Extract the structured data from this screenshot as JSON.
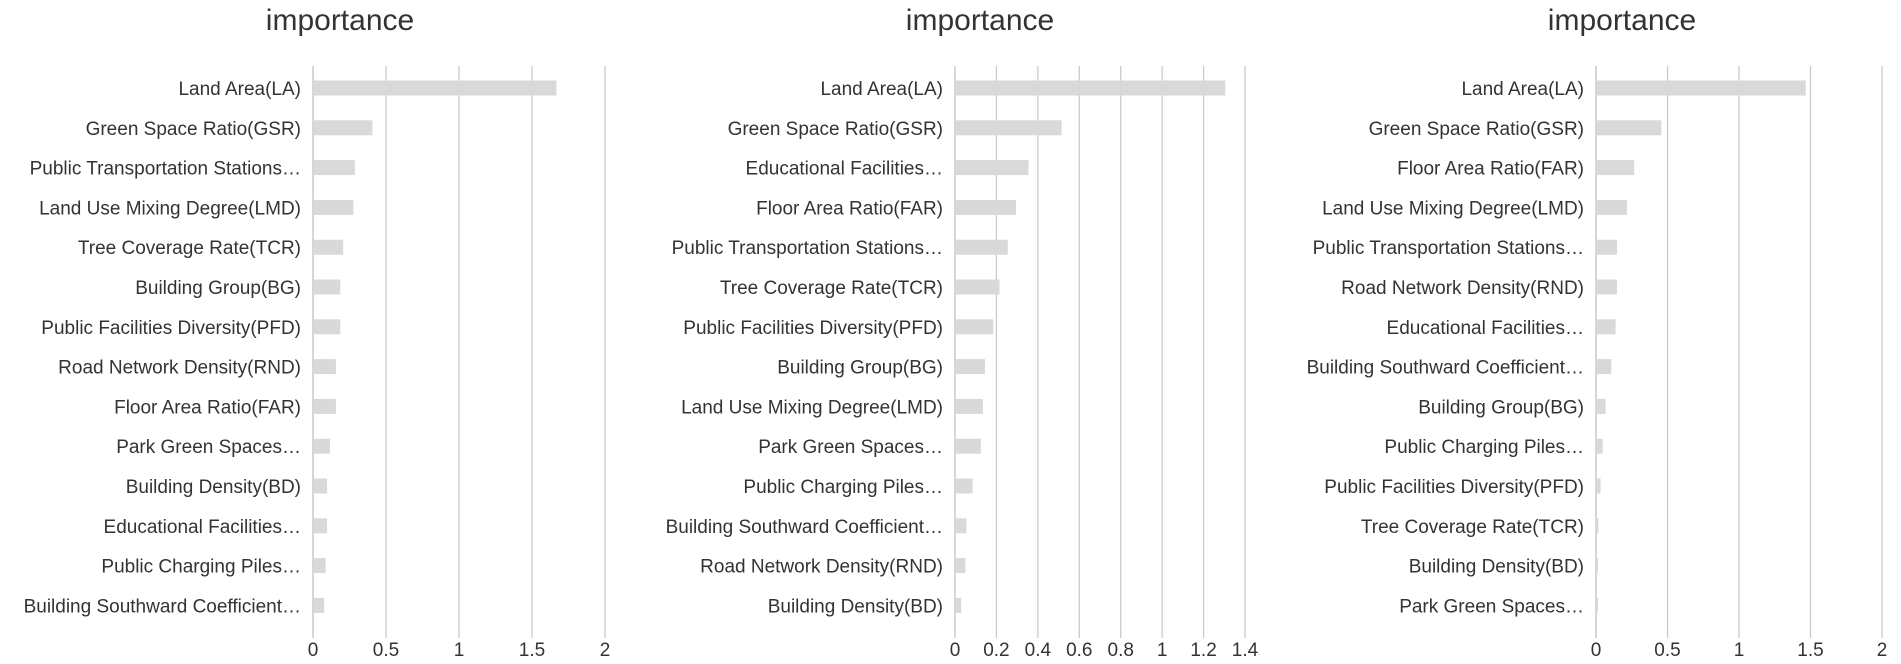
{
  "bar_color": "#d9d9d9",
  "grid_color": "#c8c8c8",
  "text_color": "#333333",
  "chart_data": [
    {
      "type": "bar",
      "orientation": "horizontal",
      "title": "importance",
      "grid": true,
      "xlim": [
        0,
        2
      ],
      "xticks": [
        "0",
        "0.5",
        "1",
        "1.5",
        "2"
      ],
      "categories": [
        "Land Area(LA)",
        "Green Space Ratio(GSR)",
        "Public Transportation Stations…",
        "Land Use Mixing Degree(LMD)",
        "Tree Coverage Rate(TCR)",
        "Building Group(BG)",
        "Public Facilities Diversity(PFD)",
        "Road Network Density(RND)",
        "Floor Area Ratio(FAR)",
        "Park Green Spaces…",
        "Building Density(BD)",
        "Educational Facilities…",
        "Public Charging Piles…",
        "Building Southward Coefficient…"
      ],
      "values": [
        1.66,
        0.4,
        0.28,
        0.27,
        0.2,
        0.18,
        0.18,
        0.15,
        0.15,
        0.11,
        0.09,
        0.09,
        0.08,
        0.07
      ]
    },
    {
      "type": "bar",
      "orientation": "horizontal",
      "title": "importance",
      "grid": true,
      "xlim": [
        0,
        1.4
      ],
      "xticks": [
        "0",
        "0.2",
        "0.4",
        "0.6",
        "0.8",
        "1",
        "1.2",
        "1.4"
      ],
      "categories": [
        "Land Area(LA)",
        "Green Space Ratio(GSR)",
        "Educational Facilities…",
        "Floor Area Ratio(FAR)",
        "Public Transportation Stations…",
        "Tree Coverage Rate(TCR)",
        "Public Facilities Diversity(PFD)",
        "Building Group(BG)",
        "Land Use Mixing Degree(LMD)",
        "Park Green Spaces…",
        "Public Charging Piles…",
        "Building Southward Coefficient…",
        "Road Network Density(RND)",
        "Building Density(BD)"
      ],
      "values": [
        1.3,
        0.51,
        0.35,
        0.29,
        0.25,
        0.21,
        0.18,
        0.14,
        0.13,
        0.12,
        0.08,
        0.05,
        0.045,
        0.025
      ]
    },
    {
      "type": "bar",
      "orientation": "horizontal",
      "title": "importance",
      "grid": true,
      "xlim": [
        0,
        2
      ],
      "xticks": [
        "0",
        "0.5",
        "1",
        "1.5",
        "2"
      ],
      "categories": [
        "Land Area(LA)",
        "Green Space Ratio(GSR)",
        "Floor Area Ratio(FAR)",
        "Land Use Mixing Degree(LMD)",
        "Public Transportation Stations…",
        "Road Network Density(RND)",
        "Educational Facilities…",
        "Building Southward Coefficient…",
        "Building Group(BG)",
        "Public Charging Piles…",
        "Public Facilities Diversity(PFD)",
        "Tree Coverage Rate(TCR)",
        "Building Density(BD)",
        "Park Green Spaces…"
      ],
      "values": [
        1.46,
        0.45,
        0.26,
        0.21,
        0.14,
        0.14,
        0.13,
        0.1,
        0.06,
        0.04,
        0.025,
        0.01,
        0.005,
        0.003
      ]
    }
  ]
}
